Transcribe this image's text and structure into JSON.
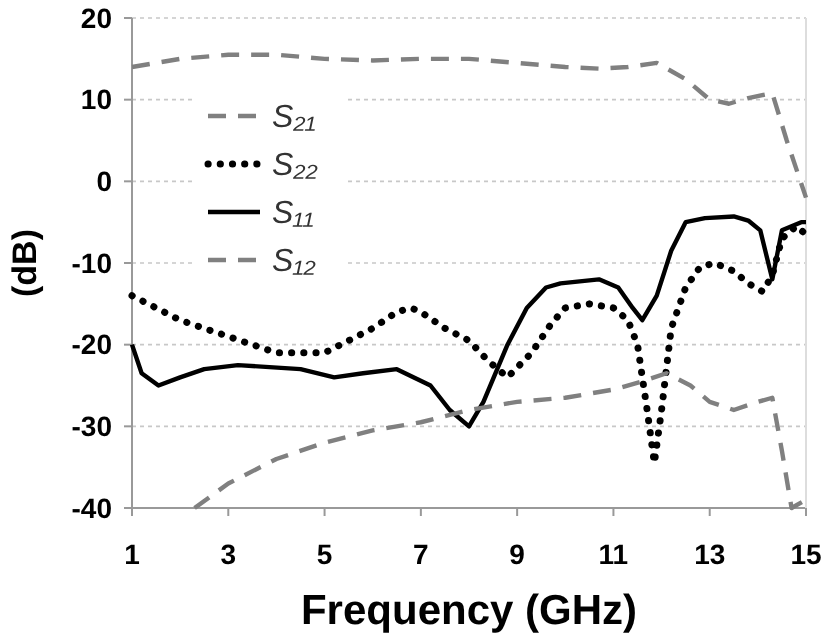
{
  "chart_data": {
    "type": "line",
    "xlabel": "Frequency (GHz)",
    "ylabel": "(dB)",
    "xlim": [
      1,
      15
    ],
    "xticks": [
      1,
      3,
      5,
      7,
      9,
      11,
      13,
      15
    ],
    "ylim": [
      -40,
      20
    ],
    "yticks": [
      -40,
      -30,
      -20,
      -10,
      0,
      10,
      20
    ],
    "grid": "y",
    "legend": "top left",
    "marker": "none",
    "series": [
      {
        "name": "S₂₁",
        "color": "#808080",
        "line_style": "dashed",
        "x": [
          1,
          2,
          3,
          4,
          5,
          6,
          7,
          8,
          9,
          10,
          10.7,
          11.3,
          11.9,
          12.5,
          13,
          13.4,
          13.8,
          14.3,
          14.6,
          15
        ],
        "values": [
          14,
          15,
          15.5,
          15.5,
          15,
          14.8,
          15,
          15,
          14.5,
          14,
          13.8,
          14,
          14.5,
          12.5,
          10,
          9.5,
          10.2,
          10.8,
          5,
          -2
        ]
      },
      {
        "name": "S₂₂",
        "color": "#000000",
        "line_style": "dotted",
        "x": [
          1,
          1.5,
          2,
          3,
          3.5,
          4,
          5,
          5.5,
          6,
          6.5,
          6.8,
          7,
          7.5,
          8,
          8.4,
          8.8,
          9.3,
          9.7,
          10,
          10.5,
          11,
          11.3,
          11.5,
          11.7,
          11.85,
          12,
          12.2,
          12.5,
          12.8,
          13.1,
          13.5,
          13.8,
          14.1,
          14.3,
          14.5,
          14.8,
          15
        ],
        "values": [
          -14,
          -15.5,
          -17,
          -19,
          -20,
          -21,
          -21,
          -19.5,
          -18,
          -16,
          -15.5,
          -16,
          -18,
          -19.5,
          -22,
          -24,
          -21,
          -17.5,
          -15.5,
          -15,
          -15.5,
          -17,
          -20,
          -28,
          -34.5,
          -28,
          -18,
          -13,
          -10.5,
          -10,
          -11,
          -12.5,
          -13.5,
          -11.5,
          -7,
          -5.5,
          -6.5
        ]
      },
      {
        "name": "S₁₁",
        "color": "#000000",
        "line_style": "solid",
        "x": [
          1,
          1.2,
          1.55,
          2,
          2.5,
          3.2,
          4.5,
          5.2,
          5.8,
          6.5,
          7.2,
          7.6,
          8,
          8.3,
          8.8,
          9.2,
          9.6,
          9.9,
          10.7,
          11.1,
          11.4,
          11.6,
          11.9,
          12.2,
          12.5,
          12.9,
          13.5,
          13.8,
          14.05,
          14.3,
          14.5,
          14.9,
          15
        ],
        "values": [
          -20,
          -23.5,
          -25,
          -24,
          -23,
          -22.5,
          -23,
          -24,
          -23.5,
          -23,
          -25,
          -28,
          -30,
          -27,
          -20,
          -15.5,
          -13,
          -12.5,
          -12,
          -13,
          -15.5,
          -17,
          -14,
          -8.5,
          -5,
          -4.5,
          -4.3,
          -4.8,
          -6,
          -12,
          -6,
          -5,
          -5
        ]
      },
      {
        "name": "S₁₂",
        "color": "#808080",
        "line_style": "dashed",
        "x": [
          2.3,
          3,
          4,
          5,
          6,
          7,
          8,
          9,
          10,
          11,
          11.6,
          12.1,
          12.6,
          13,
          13.5,
          14,
          14.3,
          14.5,
          14.7,
          15
        ],
        "values": [
          -40,
          -37,
          -34,
          -32,
          -30.5,
          -29.5,
          -28,
          -27,
          -26.5,
          -25.5,
          -24.5,
          -23.5,
          -25,
          -27,
          -28,
          -27,
          -26.5,
          -33,
          -40,
          -39
        ]
      }
    ]
  }
}
